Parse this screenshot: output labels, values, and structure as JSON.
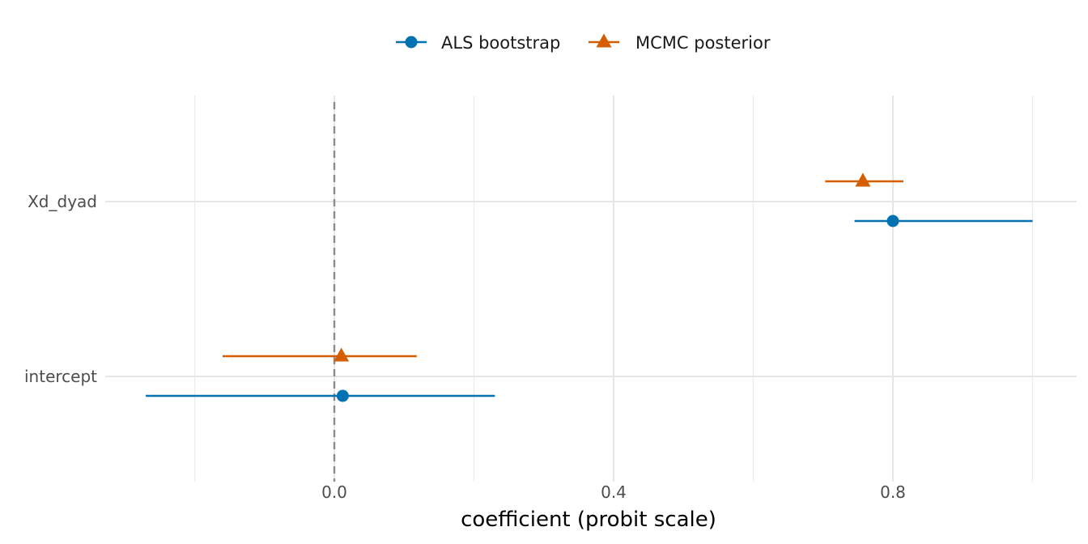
{
  "chart_data": {
    "type": "forest",
    "xlabel": "coefficient (probit scale)",
    "ylabel": "",
    "xlim": [
      -0.2,
      1.065
    ],
    "x_ticks": [
      0.0,
      0.4,
      0.8
    ],
    "x_tick_labels": [
      "0.0",
      "0.4",
      "0.8"
    ],
    "minor_x_gridlines": [
      -0.2,
      0.2,
      0.6,
      1.0
    ],
    "reference_line": {
      "x": 0,
      "style": "dashed"
    },
    "categories": [
      "Xd_dyad",
      "intercept"
    ],
    "grid": true,
    "legend_position": "top",
    "series": [
      {
        "name": "ALS bootstrap",
        "color": "#0072B2",
        "marker": "circle",
        "points": [
          {
            "category": "Xd_dyad",
            "estimate": 0.8,
            "lower": 0.745,
            "upper": 1.0
          },
          {
            "category": "intercept",
            "estimate": 0.012,
            "lower": -0.27,
            "upper": 0.23
          }
        ]
      },
      {
        "name": "MCMC posterior",
        "color": "#D55E00",
        "marker": "triangle",
        "points": [
          {
            "category": "Xd_dyad",
            "estimate": 0.757,
            "lower": 0.703,
            "upper": 0.815
          },
          {
            "category": "intercept",
            "estimate": 0.01,
            "lower": -0.16,
            "upper": 0.118
          }
        ]
      }
    ]
  }
}
